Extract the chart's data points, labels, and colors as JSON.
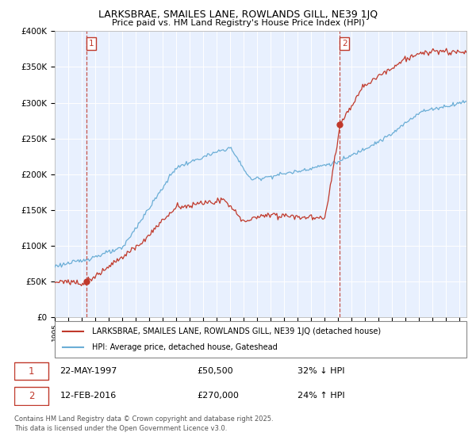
{
  "title": "LARKSBRAE, SMAILES LANE, ROWLANDS GILL, NE39 1JQ",
  "subtitle": "Price paid vs. HM Land Registry's House Price Index (HPI)",
  "legend_label1": "LARKSBRAE, SMAILES LANE, ROWLANDS GILL, NE39 1JQ (detached house)",
  "legend_label2": "HPI: Average price, detached house, Gateshead",
  "sale1_date": "22-MAY-1997",
  "sale1_price": 50500,
  "sale1_pct": "32% ↓ HPI",
  "sale2_date": "12-FEB-2016",
  "sale2_price": 270000,
  "sale2_pct": "24% ↑ HPI",
  "footnote1": "Contains HM Land Registry data © Crown copyright and database right 2025.",
  "footnote2": "This data is licensed under the Open Government Licence v3.0.",
  "hpi_color": "#6baed6",
  "property_color": "#c0392b",
  "background_color": "#e8f0fe",
  "ylim": [
    0,
    400000
  ],
  "xlim_start": 1995.0,
  "xlim_end": 2025.5,
  "sale1_year": 1997.38,
  "sale2_year": 2016.12
}
